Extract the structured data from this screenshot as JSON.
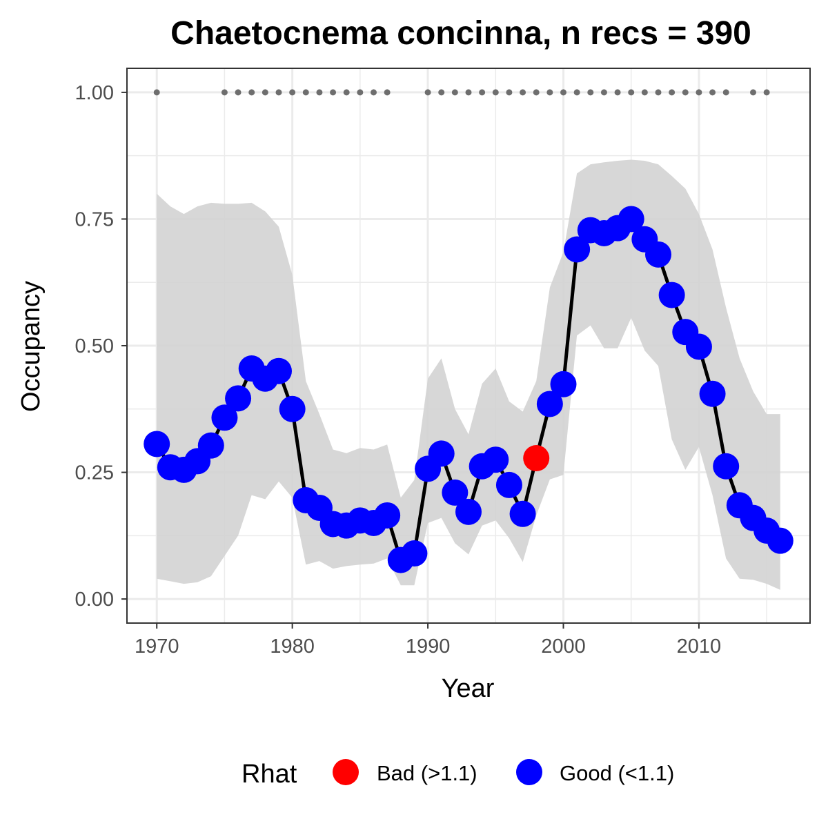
{
  "chart_data": {
    "type": "line",
    "title": "Chaetocnema concinna, n recs = 390",
    "xlabel": "Year",
    "ylabel": "Occupancy",
    "xlim": [
      1967.8,
      2018.2
    ],
    "ylim": [
      -0.0475,
      1.0475
    ],
    "x_ticks": [
      1970,
      1980,
      1990,
      2000,
      2010
    ],
    "x_tick_labels": [
      "1970",
      "1980",
      "1990",
      "2000",
      "2010"
    ],
    "y_ticks": [
      0,
      0.25,
      0.5,
      0.75,
      1.0
    ],
    "y_tick_labels": [
      "0.00",
      "0.25",
      "0.50",
      "0.75",
      "1.00"
    ],
    "grid": true,
    "colors": {
      "good": "#0000ff",
      "bad": "#ff0000",
      "line": "#000000",
      "ribbon": "#d3d3d3",
      "records": "#6e6e6e",
      "grid": "#ebebeb",
      "panel_border": "#333333"
    },
    "years": [
      1970,
      1971,
      1972,
      1973,
      1974,
      1975,
      1976,
      1977,
      1978,
      1979,
      1980,
      1981,
      1982,
      1983,
      1984,
      1985,
      1986,
      1987,
      1988,
      1989,
      1990,
      1991,
      1992,
      1993,
      1994,
      1995,
      1996,
      1997,
      1998,
      1999,
      2000,
      2001,
      2002,
      2003,
      2004,
      2005,
      2006,
      2007,
      2008,
      2009,
      2010,
      2011,
      2012,
      2013,
      2014,
      2015,
      2016
    ],
    "occupancy": [
      0.306,
      0.26,
      0.255,
      0.272,
      0.303,
      0.358,
      0.396,
      0.455,
      0.435,
      0.45,
      0.375,
      0.195,
      0.18,
      0.148,
      0.145,
      0.155,
      0.15,
      0.165,
      0.077,
      0.09,
      0.257,
      0.287,
      0.21,
      0.172,
      0.262,
      0.275,
      0.225,
      0.168,
      0.278,
      0.385,
      0.424,
      0.69,
      0.728,
      0.722,
      0.732,
      0.75,
      0.71,
      0.68,
      0.6,
      0.527,
      0.498,
      0.405,
      0.262,
      0.185,
      0.16,
      0.135,
      0.115
    ],
    "lower": [
      0.04,
      0.035,
      0.03,
      0.033,
      0.045,
      0.085,
      0.125,
      0.205,
      0.197,
      0.232,
      0.2,
      0.068,
      0.075,
      0.06,
      0.065,
      0.068,
      0.07,
      0.08,
      0.027,
      0.027,
      0.15,
      0.16,
      0.11,
      0.088,
      0.145,
      0.155,
      0.12,
      0.073,
      0.165,
      0.236,
      0.245,
      0.52,
      0.54,
      0.495,
      0.495,
      0.555,
      0.49,
      0.46,
      0.315,
      0.255,
      0.3,
      0.205,
      0.08,
      0.04,
      0.038,
      0.03,
      0.018
    ],
    "upper": [
      0.8,
      0.775,
      0.76,
      0.775,
      0.782,
      0.78,
      0.78,
      0.782,
      0.765,
      0.735,
      0.64,
      0.43,
      0.365,
      0.295,
      0.288,
      0.298,
      0.295,
      0.305,
      0.2,
      0.235,
      0.435,
      0.475,
      0.375,
      0.325,
      0.425,
      0.455,
      0.39,
      0.37,
      0.43,
      0.615,
      0.685,
      0.84,
      0.858,
      0.862,
      0.865,
      0.867,
      0.865,
      0.858,
      0.835,
      0.81,
      0.76,
      0.69,
      0.575,
      0.475,
      0.41,
      0.365,
      0.365
    ],
    "rhat_status": [
      "Good",
      "Good",
      "Good",
      "Good",
      "Good",
      "Good",
      "Good",
      "Good",
      "Good",
      "Good",
      "Good",
      "Good",
      "Good",
      "Good",
      "Good",
      "Good",
      "Good",
      "Good",
      "Good",
      "Good",
      "Good",
      "Good",
      "Good",
      "Good",
      "Good",
      "Good",
      "Good",
      "Good",
      "Bad",
      "Good",
      "Good",
      "Good",
      "Good",
      "Good",
      "Good",
      "Good",
      "Good",
      "Good",
      "Good",
      "Good",
      "Good",
      "Good",
      "Good",
      "Good",
      "Good",
      "Good",
      "Good"
    ],
    "record_years": [
      1970,
      1975,
      1976,
      1977,
      1978,
      1979,
      1980,
      1981,
      1982,
      1983,
      1984,
      1985,
      1986,
      1987,
      1990,
      1991,
      1992,
      1993,
      1994,
      1995,
      1996,
      1997,
      1998,
      1999,
      2000,
      2001,
      2002,
      2003,
      2004,
      2005,
      2006,
      2007,
      2008,
      2009,
      2010,
      2011,
      2012,
      2014,
      2015
    ],
    "record_value": 1.0,
    "legend": {
      "title": "Rhat",
      "position": "bottom",
      "items": [
        {
          "label": "Bad (>1.1)",
          "color": "#ff0000"
        },
        {
          "label": "Good (<1.1)",
          "color": "#0000ff"
        }
      ]
    }
  }
}
